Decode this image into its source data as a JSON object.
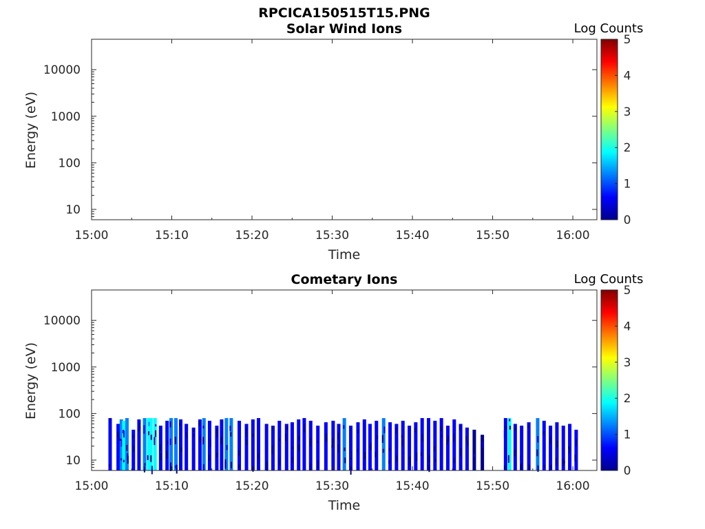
{
  "figure": {
    "title": "RPCICA150515T15.PNG"
  },
  "colormap": [
    "#00008f",
    "#0000ff",
    "#0080ff",
    "#00ffff",
    "#80ff80",
    "#ffff00",
    "#ff8000",
    "#ff0000",
    "#800000"
  ],
  "chart_data": [
    {
      "type": "heatmap",
      "title": "Solar Wind Ions",
      "xlabel": "Time",
      "ylabel": "Energy (eV)",
      "x_ticks": [
        "15:00",
        "15:10",
        "15:20",
        "15:30",
        "15:40",
        "15:50",
        "16:00"
      ],
      "xlim_minutes_after_1500": [
        0,
        63
      ],
      "y_scale": "log",
      "y_ticks": [
        "10",
        "100",
        "1000",
        "10000"
      ],
      "ylim": [
        6,
        45000
      ],
      "colorbar": {
        "label": "Log Counts",
        "ticks": [
          "0",
          "1",
          "2",
          "3",
          "4",
          "5"
        ],
        "range": [
          0,
          5
        ]
      },
      "bursts": []
    },
    {
      "type": "heatmap",
      "title": "Cometary Ions",
      "xlabel": "Time",
      "ylabel": "Energy (eV)",
      "x_ticks": [
        "15:00",
        "15:10",
        "15:20",
        "15:30",
        "15:40",
        "15:50",
        "16:00"
      ],
      "xlim_minutes_after_1500": [
        0,
        63
      ],
      "y_scale": "log",
      "y_ticks": [
        "10",
        "100",
        "1000",
        "10000"
      ],
      "ylim": [
        6,
        45000
      ],
      "colorbar": {
        "label": "Log Counts",
        "ticks": [
          "0",
          "1",
          "2",
          "3",
          "4",
          "5"
        ],
        "range": [
          0,
          5
        ]
      },
      "data_extent_minutes": [
        1.8,
        60.6
      ],
      "energy_extent_eV": [
        6,
        85
      ],
      "bursts": [
        {
          "t": 2.1,
          "emax": 80,
          "level": 0.4
        },
        {
          "t": 3.1,
          "emax": 60,
          "level": 0.6
        },
        {
          "t": 3.5,
          "emax": 75,
          "level": 1.0
        },
        {
          "t": 3.8,
          "emax": 70,
          "level": 1.7
        },
        {
          "t": 4.2,
          "emax": 80,
          "level": 1.2
        },
        {
          "t": 5.0,
          "emax": 45,
          "level": 0.5
        },
        {
          "t": 5.7,
          "emax": 75,
          "level": 0.9
        },
        {
          "t": 6.4,
          "emax": 80,
          "level": 1.3
        },
        {
          "t": 6.9,
          "emax": 80,
          "level": 1.7
        },
        {
          "t": 7.2,
          "emax": 80,
          "level": 1.9
        },
        {
          "t": 7.7,
          "emax": 80,
          "level": 1.6
        },
        {
          "t": 8.4,
          "emax": 55,
          "level": 0.5
        },
        {
          "t": 9.2,
          "emax": 70,
          "level": 0.6
        },
        {
          "t": 9.7,
          "emax": 80,
          "level": 1.0
        },
        {
          "t": 10.3,
          "emax": 80,
          "level": 1.3
        },
        {
          "t": 10.9,
          "emax": 75,
          "level": 0.9
        },
        {
          "t": 11.6,
          "emax": 60,
          "level": 0.5
        },
        {
          "t": 12.5,
          "emax": 50,
          "level": 0.4
        },
        {
          "t": 13.3,
          "emax": 75,
          "level": 0.8
        },
        {
          "t": 13.8,
          "emax": 80,
          "level": 1.0
        },
        {
          "t": 14.5,
          "emax": 70,
          "level": 0.7
        },
        {
          "t": 15.4,
          "emax": 55,
          "level": 0.5
        },
        {
          "t": 16.0,
          "emax": 75,
          "level": 0.9
        },
        {
          "t": 16.6,
          "emax": 80,
          "level": 1.1
        },
        {
          "t": 17.2,
          "emax": 80,
          "level": 1.0
        },
        {
          "t": 18.2,
          "emax": 70,
          "level": 0.6
        },
        {
          "t": 19.1,
          "emax": 60,
          "level": 0.5
        },
        {
          "t": 19.9,
          "emax": 75,
          "level": 0.8
        },
        {
          "t": 20.6,
          "emax": 80,
          "level": 0.9
        },
        {
          "t": 21.6,
          "emax": 60,
          "level": 0.4
        },
        {
          "t": 22.4,
          "emax": 55,
          "level": 0.4
        },
        {
          "t": 23.2,
          "emax": 70,
          "level": 0.5
        },
        {
          "t": 24.1,
          "emax": 60,
          "level": 0.4
        },
        {
          "t": 24.8,
          "emax": 65,
          "level": 0.5
        },
        {
          "t": 25.6,
          "emax": 75,
          "level": 0.7
        },
        {
          "t": 26.3,
          "emax": 80,
          "level": 0.9
        },
        {
          "t": 27.1,
          "emax": 70,
          "level": 0.5
        },
        {
          "t": 28.0,
          "emax": 55,
          "level": 0.4
        },
        {
          "t": 29.0,
          "emax": 65,
          "level": 0.5
        },
        {
          "t": 29.9,
          "emax": 70,
          "level": 0.6
        },
        {
          "t": 30.6,
          "emax": 60,
          "level": 0.4
        },
        {
          "t": 31.3,
          "emax": 80,
          "level": 1.2
        },
        {
          "t": 32.1,
          "emax": 55,
          "level": 0.4
        },
        {
          "t": 33.0,
          "emax": 65,
          "level": 0.5
        },
        {
          "t": 33.8,
          "emax": 75,
          "level": 0.7
        },
        {
          "t": 34.5,
          "emax": 60,
          "level": 0.5
        },
        {
          "t": 35.3,
          "emax": 70,
          "level": 0.6
        },
        {
          "t": 36.2,
          "emax": 80,
          "level": 1.1
        },
        {
          "t": 37.0,
          "emax": 65,
          "level": 0.5
        },
        {
          "t": 37.8,
          "emax": 60,
          "level": 0.4
        },
        {
          "t": 38.6,
          "emax": 70,
          "level": 0.6
        },
        {
          "t": 39.4,
          "emax": 55,
          "level": 0.4
        },
        {
          "t": 40.2,
          "emax": 65,
          "level": 0.5
        },
        {
          "t": 41.0,
          "emax": 80,
          "level": 0.7
        },
        {
          "t": 41.8,
          "emax": 80,
          "level": 0.8
        },
        {
          "t": 42.6,
          "emax": 70,
          "level": 0.6
        },
        {
          "t": 43.4,
          "emax": 80,
          "level": 0.7
        },
        {
          "t": 44.2,
          "emax": 55,
          "level": 0.4
        },
        {
          "t": 45.0,
          "emax": 75,
          "level": 0.6
        },
        {
          "t": 45.8,
          "emax": 60,
          "level": 0.4
        },
        {
          "t": 46.6,
          "emax": 50,
          "level": 0.4
        },
        {
          "t": 47.5,
          "emax": 45,
          "level": 0.3
        },
        {
          "t": 48.5,
          "emax": 35,
          "level": 0.3
        },
        {
          "t": 51.4,
          "emax": 80,
          "level": 0.9
        },
        {
          "t": 51.9,
          "emax": 80,
          "level": 1.8
        },
        {
          "t": 52.6,
          "emax": 60,
          "level": 0.5
        },
        {
          "t": 53.4,
          "emax": 55,
          "level": 0.4
        },
        {
          "t": 54.3,
          "emax": 65,
          "level": 0.6
        },
        {
          "t": 55.4,
          "emax": 80,
          "level": 1.1
        },
        {
          "t": 56.2,
          "emax": 70,
          "level": 0.6
        },
        {
          "t": 57.0,
          "emax": 55,
          "level": 0.5
        },
        {
          "t": 57.8,
          "emax": 65,
          "level": 0.6
        },
        {
          "t": 58.6,
          "emax": 55,
          "level": 0.4
        },
        {
          "t": 59.4,
          "emax": 60,
          "level": 0.5
        },
        {
          "t": 60.2,
          "emax": 45,
          "level": 0.4
        }
      ]
    }
  ]
}
